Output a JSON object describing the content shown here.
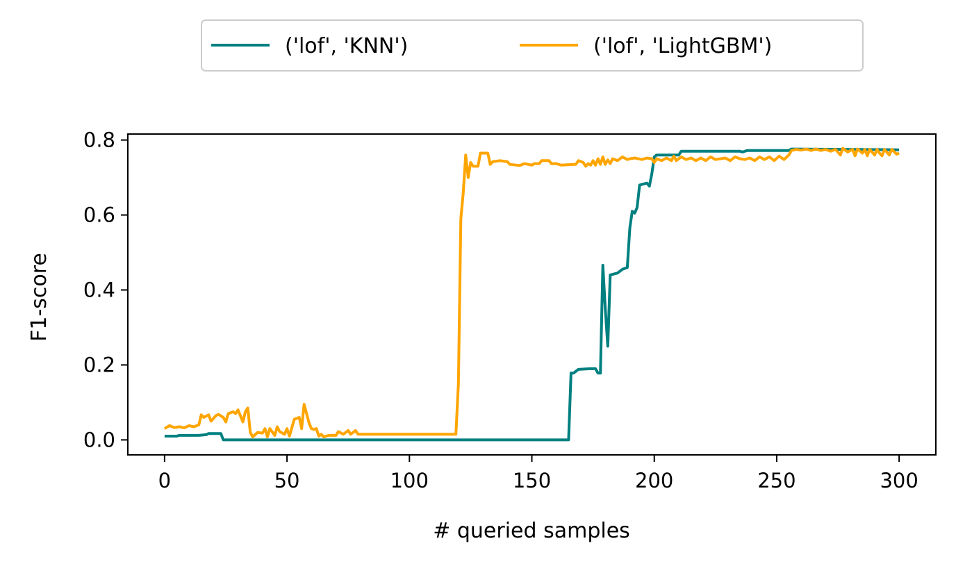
{
  "chart_data": {
    "type": "line",
    "xlabel": "# queried samples",
    "ylabel": "F1-score",
    "xlim": [
      -15,
      315
    ],
    "ylim": [
      -0.04,
      0.816
    ],
    "xticks": [
      0,
      50,
      100,
      150,
      200,
      250,
      300
    ],
    "yticks": [
      0.0,
      0.2,
      0.4,
      0.6,
      0.8
    ],
    "xtick_labels": [
      "0",
      "50",
      "100",
      "150",
      "200",
      "250",
      "300"
    ],
    "ytick_labels": [
      "0.0",
      "0.2",
      "0.4",
      "0.6",
      "0.8"
    ],
    "grid": false,
    "legend_position": "top-center, above plot",
    "series": [
      {
        "name": "('lof', 'KNN')",
        "color": "#008080",
        "points": [
          [
            0,
            0.01
          ],
          [
            5,
            0.01
          ],
          [
            6,
            0.012
          ],
          [
            14,
            0.012
          ],
          [
            17,
            0.014
          ],
          [
            18,
            0.017
          ],
          [
            23,
            0.017
          ],
          [
            24,
            0.0
          ],
          [
            165,
            0.0
          ],
          [
            166,
            0.178
          ],
          [
            167,
            0.178
          ],
          [
            169,
            0.188
          ],
          [
            174,
            0.19
          ],
          [
            176,
            0.19
          ],
          [
            177,
            0.178
          ],
          [
            178,
            0.178
          ],
          [
            179,
            0.466
          ],
          [
            180,
            0.35
          ],
          [
            181,
            0.25
          ],
          [
            182,
            0.44
          ],
          [
            185,
            0.445
          ],
          [
            187,
            0.455
          ],
          [
            189,
            0.46
          ],
          [
            190,
            0.565
          ],
          [
            191,
            0.61
          ],
          [
            192,
            0.605
          ],
          [
            193,
            0.62
          ],
          [
            194,
            0.68
          ],
          [
            197,
            0.685
          ],
          [
            198,
            0.677
          ],
          [
            199,
            0.71
          ],
          [
            200,
            0.755
          ],
          [
            201,
            0.76
          ],
          [
            210,
            0.76
          ],
          [
            211,
            0.77
          ],
          [
            235,
            0.77
          ],
          [
            236,
            0.768
          ],
          [
            238,
            0.772
          ],
          [
            255,
            0.772
          ],
          [
            256,
            0.776
          ],
          [
            300,
            0.774
          ]
        ]
      },
      {
        "name": "('lof', 'LightGBM')",
        "color": "#ffa500",
        "points": [
          [
            0,
            0.03
          ],
          [
            2,
            0.038
          ],
          [
            4,
            0.033
          ],
          [
            6,
            0.035
          ],
          [
            8,
            0.032
          ],
          [
            10,
            0.038
          ],
          [
            12,
            0.035
          ],
          [
            14,
            0.04
          ],
          [
            15,
            0.067
          ],
          [
            16,
            0.06
          ],
          [
            18,
            0.067
          ],
          [
            19,
            0.05
          ],
          [
            21,
            0.065
          ],
          [
            22,
            0.068
          ],
          [
            24,
            0.06
          ],
          [
            25,
            0.048
          ],
          [
            26,
            0.07
          ],
          [
            28,
            0.075
          ],
          [
            29,
            0.07
          ],
          [
            30,
            0.08
          ],
          [
            32,
            0.048
          ],
          [
            33,
            0.075
          ],
          [
            34,
            0.085
          ],
          [
            35,
            0.02
          ],
          [
            36,
            0.008
          ],
          [
            38,
            0.02
          ],
          [
            40,
            0.018
          ],
          [
            41,
            0.03
          ],
          [
            42,
            0.008
          ],
          [
            43,
            0.03
          ],
          [
            45,
            0.012
          ],
          [
            46,
            0.035
          ],
          [
            47,
            0.022
          ],
          [
            49,
            0.015
          ],
          [
            50,
            0.03
          ],
          [
            51,
            0.01
          ],
          [
            53,
            0.055
          ],
          [
            55,
            0.06
          ],
          [
            56,
            0.03
          ],
          [
            57,
            0.095
          ],
          [
            58,
            0.07
          ],
          [
            59,
            0.045
          ],
          [
            60,
            0.03
          ],
          [
            61,
            0.028
          ],
          [
            62,
            0.03
          ],
          [
            63,
            0.01
          ],
          [
            64,
            0.015
          ],
          [
            65,
            0.008
          ],
          [
            67,
            0.012
          ],
          [
            70,
            0.012
          ],
          [
            71,
            0.022
          ],
          [
            73,
            0.015
          ],
          [
            75,
            0.025
          ],
          [
            76,
            0.015
          ],
          [
            78,
            0.025
          ],
          [
            79,
            0.015
          ],
          [
            118,
            0.015
          ],
          [
            119,
            0.015
          ],
          [
            120,
            0.15
          ],
          [
            121,
            0.59
          ],
          [
            122,
            0.66
          ],
          [
            123,
            0.76
          ],
          [
            124,
            0.7
          ],
          [
            125,
            0.74
          ],
          [
            126,
            0.73
          ],
          [
            128,
            0.73
          ],
          [
            129,
            0.765
          ],
          [
            132,
            0.765
          ],
          [
            133,
            0.735
          ],
          [
            134,
            0.742
          ],
          [
            137,
            0.745
          ],
          [
            140,
            0.742
          ],
          [
            141,
            0.735
          ],
          [
            145,
            0.732
          ],
          [
            147,
            0.737
          ],
          [
            150,
            0.733
          ],
          [
            151,
            0.737
          ],
          [
            153,
            0.737
          ],
          [
            154,
            0.745
          ],
          [
            157,
            0.745
          ],
          [
            158,
            0.737
          ],
          [
            160,
            0.737
          ],
          [
            162,
            0.733
          ],
          [
            167,
            0.735
          ],
          [
            168,
            0.735
          ],
          [
            169,
            0.745
          ],
          [
            171,
            0.74
          ],
          [
            172,
            0.73
          ],
          [
            173,
            0.737
          ],
          [
            174,
            0.733
          ],
          [
            175,
            0.745
          ],
          [
            176,
            0.733
          ],
          [
            177,
            0.75
          ],
          [
            178,
            0.735
          ],
          [
            179,
            0.755
          ],
          [
            180,
            0.735
          ],
          [
            181,
            0.747
          ],
          [
            182,
            0.737
          ],
          [
            183,
            0.75
          ],
          [
            185,
            0.745
          ],
          [
            187,
            0.755
          ],
          [
            189,
            0.748
          ],
          [
            190,
            0.75
          ],
          [
            192,
            0.752
          ],
          [
            195,
            0.748
          ],
          [
            197,
            0.752
          ],
          [
            199,
            0.75
          ],
          [
            200,
            0.74
          ],
          [
            201,
            0.75
          ],
          [
            203,
            0.745
          ],
          [
            205,
            0.752
          ],
          [
            207,
            0.745
          ],
          [
            208,
            0.757
          ],
          [
            209,
            0.745
          ],
          [
            211,
            0.755
          ],
          [
            213,
            0.748
          ],
          [
            215,
            0.752
          ],
          [
            217,
            0.745
          ],
          [
            219,
            0.752
          ],
          [
            221,
            0.745
          ],
          [
            223,
            0.755
          ],
          [
            225,
            0.748
          ],
          [
            227,
            0.75
          ],
          [
            229,
            0.752
          ],
          [
            231,
            0.745
          ],
          [
            233,
            0.755
          ],
          [
            235,
            0.75
          ],
          [
            237,
            0.748
          ],
          [
            239,
            0.752
          ],
          [
            241,
            0.745
          ],
          [
            243,
            0.755
          ],
          [
            245,
            0.748
          ],
          [
            247,
            0.755
          ],
          [
            249,
            0.745
          ],
          [
            251,
            0.757
          ],
          [
            253,
            0.748
          ],
          [
            255,
            0.76
          ],
          [
            256,
            0.772
          ],
          [
            258,
            0.775
          ],
          [
            260,
            0.773
          ],
          [
            262,
            0.776
          ],
          [
            264,
            0.772
          ],
          [
            266,
            0.776
          ],
          [
            268,
            0.772
          ],
          [
            270,
            0.775
          ],
          [
            272,
            0.77
          ],
          [
            274,
            0.775
          ],
          [
            276,
            0.76
          ],
          [
            277,
            0.778
          ],
          [
            279,
            0.768
          ],
          [
            281,
            0.775
          ],
          [
            282,
            0.758
          ],
          [
            283,
            0.776
          ],
          [
            285,
            0.765
          ],
          [
            286,
            0.775
          ],
          [
            287,
            0.758
          ],
          [
            288,
            0.775
          ],
          [
            290,
            0.76
          ],
          [
            291,
            0.775
          ],
          [
            292,
            0.765
          ],
          [
            293,
            0.758
          ],
          [
            294,
            0.775
          ],
          [
            296,
            0.76
          ],
          [
            297,
            0.775
          ],
          [
            299,
            0.762
          ],
          [
            300,
            0.765
          ]
        ]
      }
    ]
  }
}
